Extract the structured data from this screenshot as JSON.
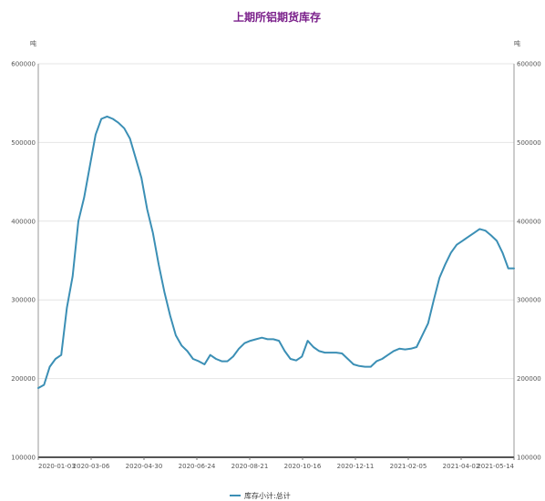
{
  "chart_data": {
    "type": "line",
    "title": "上期所铝期货库存",
    "y_unit_left": "吨",
    "y_unit_right": "吨",
    "ylim": [
      100000,
      600000
    ],
    "yticks": [
      "100000",
      "200000",
      "300000",
      "400000",
      "500000",
      "600000"
    ],
    "x_tick_labels": [
      "2020-01-03",
      "2020-03-06",
      "2020-04-30",
      "2020-06-24",
      "2020-08-21",
      "2020-10-16",
      "2020-12-11",
      "2021-02-05",
      "2021-04-02",
      "2021-05-14"
    ],
    "grid": true,
    "legend_position": "bottom",
    "color": "#3b8fb5",
    "series": [
      {
        "name": "库存小计:总计",
        "values": [
          188000,
          192000,
          215000,
          225000,
          230000,
          290000,
          330000,
          400000,
          430000,
          470000,
          510000,
          530000,
          533000,
          530000,
          525000,
          518000,
          505000,
          480000,
          455000,
          415000,
          385000,
          345000,
          310000,
          280000,
          255000,
          242000,
          235000,
          225000,
          222000,
          218000,
          230000,
          225000,
          222000,
          222000,
          228000,
          238000,
          245000,
          248000,
          250000,
          252000,
          250000,
          250000,
          248000,
          235000,
          225000,
          223000,
          228000,
          248000,
          240000,
          235000,
          233000,
          233000,
          233000,
          232000,
          225000,
          218000,
          216000,
          215000,
          215000,
          222000,
          225000,
          230000,
          235000,
          238000,
          237000,
          238000,
          240000,
          255000,
          270000,
          300000,
          328000,
          345000,
          360000,
          370000,
          375000,
          380000,
          385000,
          390000,
          388000,
          382000,
          375000,
          360000,
          340000,
          340000
        ]
      }
    ]
  }
}
